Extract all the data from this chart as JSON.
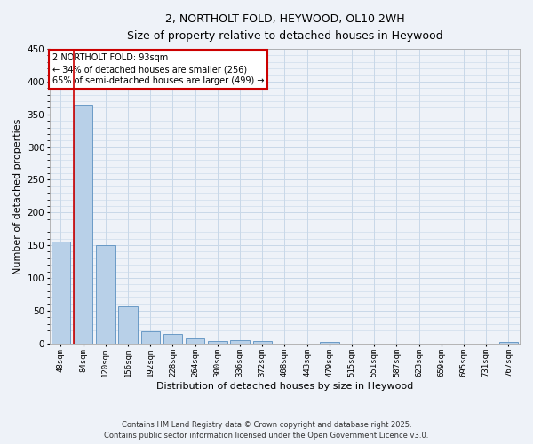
{
  "title_line1": "2, NORTHOLT FOLD, HEYWOOD, OL10 2WH",
  "title_line2": "Size of property relative to detached houses in Heywood",
  "xlabel": "Distribution of detached houses by size in Heywood",
  "ylabel": "Number of detached properties",
  "categories": [
    "48sqm",
    "84sqm",
    "120sqm",
    "156sqm",
    "192sqm",
    "228sqm",
    "264sqm",
    "300sqm",
    "336sqm",
    "372sqm",
    "408sqm",
    "443sqm",
    "479sqm",
    "515sqm",
    "551sqm",
    "587sqm",
    "623sqm",
    "659sqm",
    "695sqm",
    "731sqm",
    "767sqm"
  ],
  "values": [
    155,
    365,
    150,
    57,
    18,
    14,
    7,
    4,
    5,
    4,
    0,
    0,
    2,
    0,
    0,
    0,
    0,
    0,
    0,
    0,
    2
  ],
  "bar_color": "#b8d0e8",
  "bar_edge_color": "#5a8fc0",
  "grid_color": "#c8d8e8",
  "background_color": "#eef2f8",
  "annotation_box_color": "#ffffff",
  "annotation_border_color": "#cc0000",
  "property_line_color": "#cc0000",
  "property_bin_index": 1,
  "annotation_text": "2 NORTHOLT FOLD: 93sqm\n← 34% of detached houses are smaller (256)\n65% of semi-detached houses are larger (499) →",
  "footer_line1": "Contains HM Land Registry data © Crown copyright and database right 2025.",
  "footer_line2": "Contains public sector information licensed under the Open Government Licence v3.0.",
  "ylim": [
    0,
    450
  ],
  "yticks": [
    0,
    50,
    100,
    150,
    200,
    250,
    300,
    350,
    400,
    450
  ]
}
